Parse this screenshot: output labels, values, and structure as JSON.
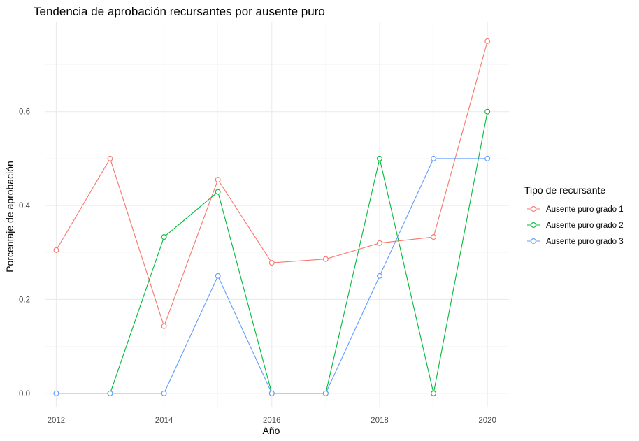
{
  "chart_data": {
    "type": "line",
    "title": "Tendencia de aprobación recursantes por ausente puro",
    "xlabel": "Año",
    "ylabel": "Porcentaje de aprobación",
    "x": [
      2012,
      2013,
      2014,
      2015,
      2016,
      2017,
      2018,
      2019,
      2020
    ],
    "xlim": [
      2011.8,
      2020.4
    ],
    "ylim": [
      -0.03,
      0.79
    ],
    "x_ticks": [
      2012,
      2014,
      2016,
      2018,
      2020
    ],
    "y_ticks": [
      0.0,
      0.2,
      0.4,
      0.6
    ],
    "x_tick_labels": [
      "2012",
      "2014",
      "2016",
      "2018",
      "2020"
    ],
    "y_tick_labels": [
      "0.0",
      "0.2",
      "0.4",
      "0.6"
    ],
    "grid": true,
    "legend_title": "Tipo de recursante",
    "legend_position": "right",
    "series": [
      {
        "name": "Ausente puro grado 1",
        "color": "#F8766D",
        "x": [
          2012,
          2013,
          2014,
          2015,
          2016,
          2017,
          2018,
          2019,
          2020
        ],
        "values": [
          0.305,
          0.5,
          0.143,
          0.455,
          0.278,
          0.286,
          0.32,
          0.333,
          0.75
        ]
      },
      {
        "name": "Ausente puro grado 2",
        "color": "#00BA38",
        "x": [
          2013,
          2014,
          2015,
          2016,
          2017,
          2018,
          2019,
          2020
        ],
        "values": [
          0.0,
          0.333,
          0.429,
          0.0,
          0.0,
          0.5,
          0.0,
          0.6
        ]
      },
      {
        "name": "Ausente puro grado 3",
        "color": "#619CFF",
        "x": [
          2012,
          2013,
          2014,
          2015,
          2016,
          2017,
          2018,
          2019,
          2020
        ],
        "values": [
          0.0,
          0.0,
          0.0,
          0.25,
          0.0,
          0.0,
          0.25,
          0.5,
          0.5
        ]
      }
    ]
  }
}
